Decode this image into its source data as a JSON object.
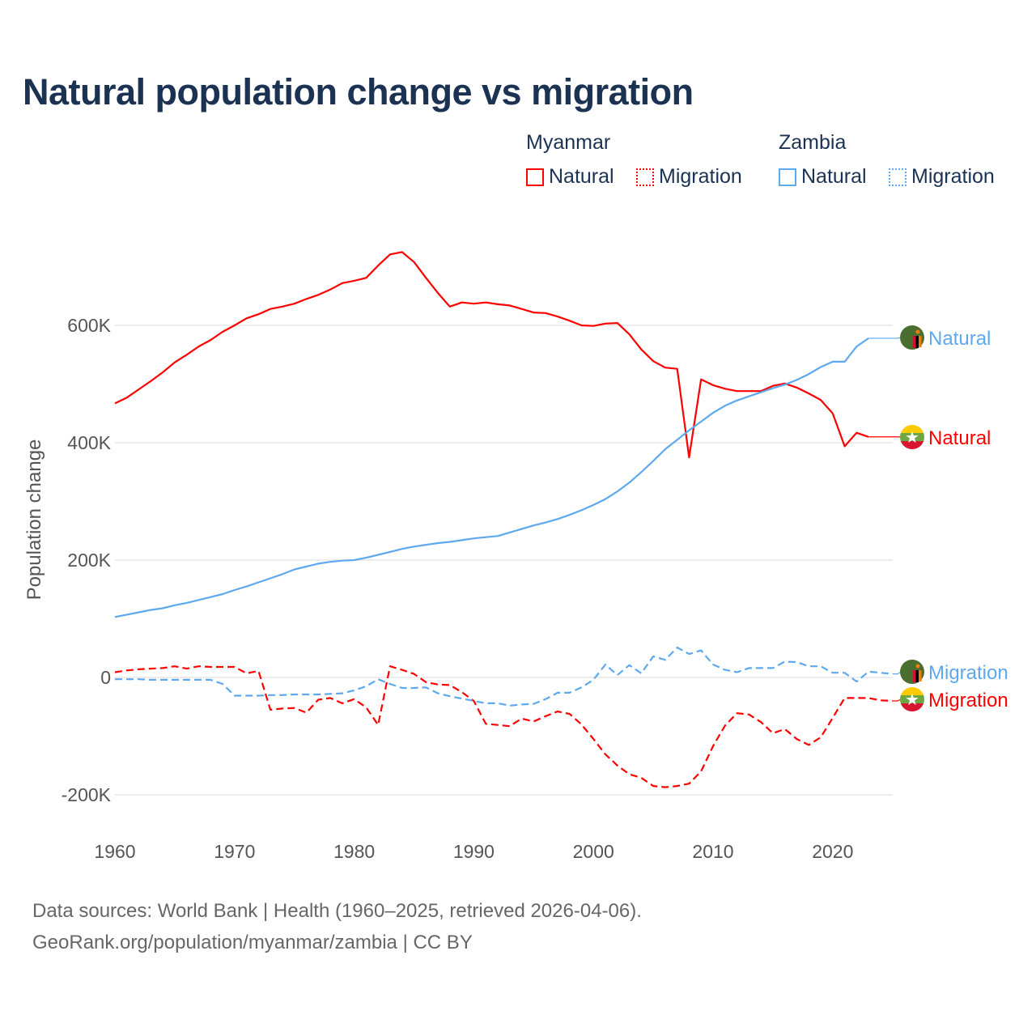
{
  "title": "Natural population change vs migration",
  "legend": {
    "groups": [
      {
        "name": "Myanmar",
        "items": [
          {
            "label": "Natural",
            "style": "solid"
          },
          {
            "label": "Migration",
            "style": "dotted"
          }
        ],
        "color": "#ff0000"
      },
      {
        "name": "Zambia",
        "items": [
          {
            "label": "Natural",
            "style": "solid"
          },
          {
            "label": "Migration",
            "style": "dotted"
          }
        ],
        "color": "#5ea8ee"
      }
    ]
  },
  "footer": {
    "line1": "Data sources: World Bank | Health (1960–2025, retrieved 2026-04-06).",
    "line2": "GeoRank.org/population/myanmar/zambia | CC BY"
  },
  "chart_data": {
    "type": "line",
    "title": "Natural population change vs migration",
    "xlabel": "",
    "ylabel": "Population change",
    "xlim": [
      1960,
      2025
    ],
    "ylim": [
      -200000,
      700000
    ],
    "x_ticks": [
      {
        "value": 1960,
        "label": "1960"
      },
      {
        "value": 1970,
        "label": "1970"
      },
      {
        "value": 1980,
        "label": "1980"
      },
      {
        "value": 1990,
        "label": "1990"
      },
      {
        "value": 2000,
        "label": "2000"
      },
      {
        "value": 2010,
        "label": "2010"
      },
      {
        "value": 2020,
        "label": "2020"
      }
    ],
    "y_ticks": [
      {
        "value": -200000,
        "label": "-200K"
      },
      {
        "value": 0,
        "label": "0"
      },
      {
        "value": 200000,
        "label": "200K"
      },
      {
        "value": 400000,
        "label": "400K"
      },
      {
        "value": 600000,
        "label": "600K"
      }
    ],
    "grid": true,
    "legend_position": "top-right",
    "series": [
      {
        "name": "Myanmar Natural",
        "country": "Myanmar",
        "end_label": "Natural",
        "color": "#ff0000",
        "dash": false,
        "start_year": 1960,
        "flag": "myanmar",
        "values_k": [
          467,
          477,
          491,
          505,
          520,
          537,
          550,
          564,
          575,
          589,
          600,
          612,
          619,
          628,
          632,
          637,
          645,
          652,
          661,
          672,
          676,
          681,
          702,
          721,
          725,
          708,
          681,
          655,
          632,
          639,
          637,
          639,
          636,
          634,
          628,
          622,
          621,
          615,
          608,
          600,
          599,
          603,
          604,
          585,
          559,
          539,
          528,
          526,
          375,
          508,
          498,
          492,
          488,
          488,
          488,
          497,
          501,
          494,
          484,
          473,
          450,
          394,
          417,
          410
        ]
      },
      {
        "name": "Zambia Natural",
        "country": "Zambia",
        "end_label": "Natural",
        "color": "#5ea8ee",
        "dash": false,
        "start_year": 1960,
        "flag": "zambia",
        "values_k": [
          103,
          107,
          111,
          115,
          118,
          123,
          127,
          132,
          137,
          142,
          149,
          155,
          162,
          169,
          176,
          184,
          189,
          194,
          197,
          199,
          200,
          204,
          209,
          214,
          219,
          223,
          226,
          229,
          231,
          234,
          237,
          239,
          241,
          247,
          253,
          259,
          264,
          270,
          277,
          285,
          294,
          304,
          317,
          332,
          350,
          369,
          389,
          405,
          421,
          436,
          451,
          463,
          472,
          479,
          486,
          493,
          499,
          507,
          517,
          529,
          538,
          538,
          564,
          578
        ]
      },
      {
        "name": "Myanmar Migration",
        "country": "Myanmar",
        "end_label": "Migration",
        "color": "#ff0000",
        "dash": true,
        "start_year": 1960,
        "flag": "myanmar",
        "values_k": [
          9,
          12,
          14,
          15,
          16,
          19,
          15,
          19,
          18,
          18,
          18,
          7,
          11,
          -55,
          -53,
          -52,
          -60,
          -38,
          -35,
          -44,
          -37,
          -51,
          -81,
          19,
          13,
          6,
          -8,
          -12,
          -13,
          -25,
          -40,
          -79,
          -81,
          -83,
          -70,
          -75,
          -66,
          -58,
          -62,
          -80,
          -105,
          -131,
          -150,
          -165,
          -171,
          -185,
          -187,
          -185,
          -181,
          -160,
          -117,
          -82,
          -61,
          -63,
          -76,
          -95,
          -88,
          -105,
          -115,
          -102,
          -69,
          -35,
          -35,
          -35,
          -39,
          -40
        ]
      },
      {
        "name": "Zambia Migration",
        "country": "Zambia",
        "end_label": "Migration",
        "color": "#5ea8ee",
        "dash": true,
        "start_year": 1960,
        "flag": "zambia",
        "values_k": [
          -3,
          -3,
          -3,
          -4,
          -4,
          -4,
          -4,
          -4,
          -4,
          -11,
          -31,
          -31,
          -31,
          -30,
          -30,
          -29,
          -29,
          -29,
          -28,
          -27,
          -22,
          -15,
          -3,
          -11,
          -18,
          -18,
          -17,
          -27,
          -32,
          -36,
          -40,
          -44,
          -44,
          -48,
          -46,
          -45,
          -37,
          -26,
          -26,
          -17,
          -4,
          22,
          4,
          21,
          7,
          36,
          30,
          51,
          40,
          46,
          22,
          13,
          9,
          16,
          16,
          16,
          27,
          26,
          19,
          19,
          8,
          8,
          -7,
          10,
          8,
          6
        ]
      }
    ]
  }
}
